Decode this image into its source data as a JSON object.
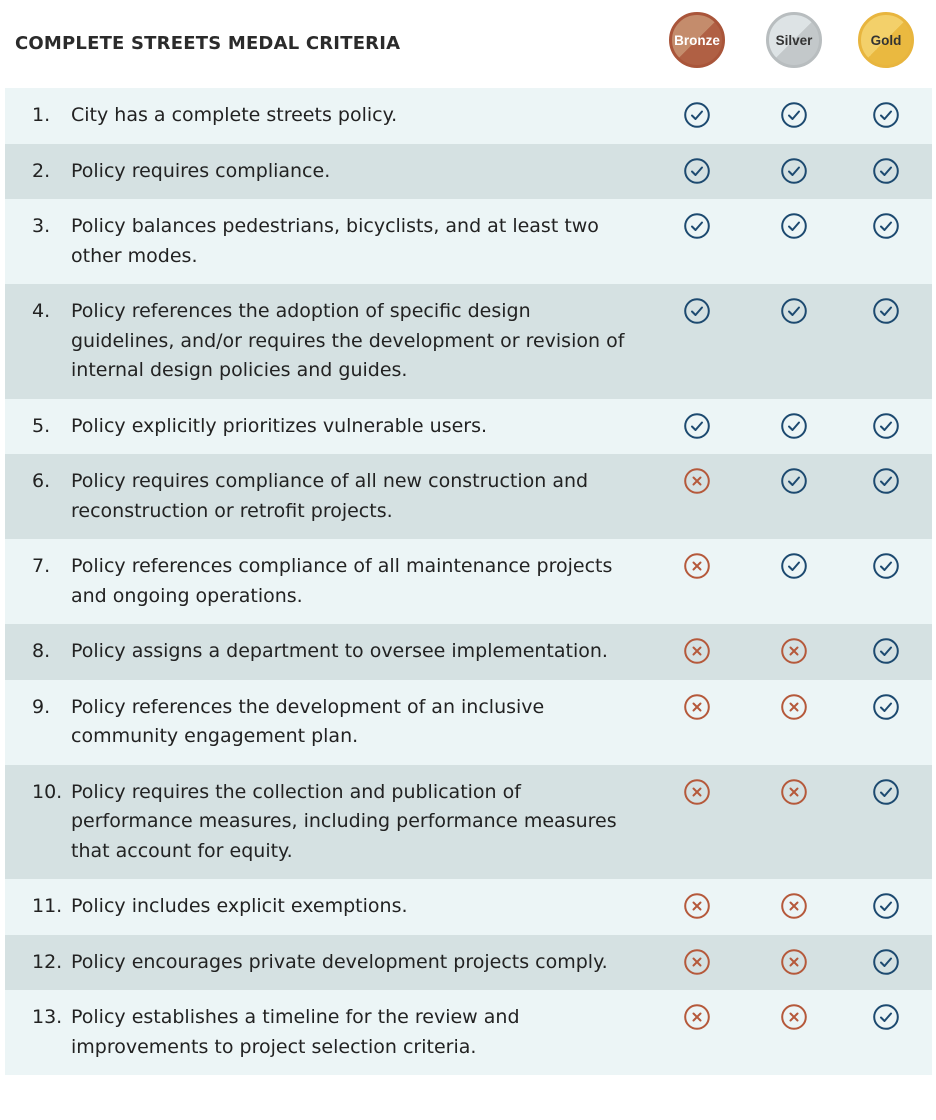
{
  "title": "COMPLETE STREETS MEDAL CRITERIA",
  "medals": [
    "Bronze",
    "Silver",
    "Gold"
  ],
  "colors": {
    "check": "#1d4a70",
    "cross": "#b5593b",
    "row_light": "#ecf5f6",
    "row_dark": "#d5e1e2"
  },
  "rows": [
    {
      "num": "1.",
      "text": "City has a complete streets policy.",
      "marks": [
        "check",
        "check",
        "check"
      ]
    },
    {
      "num": "2.",
      "text": "Policy requires compliance.",
      "marks": [
        "check",
        "check",
        "check"
      ]
    },
    {
      "num": "3.",
      "text": "Policy balances pedestrians, bicyclists, and at least two other modes.",
      "marks": [
        "check",
        "check",
        "check"
      ]
    },
    {
      "num": "4.",
      "text": "Policy references the adoption of specific design guidelines, and/or requires the development or revision of internal design policies and guides.",
      "marks": [
        "check",
        "check",
        "check"
      ]
    },
    {
      "num": "5.",
      "text": "Policy explicitly prioritizes vulnerable users.",
      "marks": [
        "check",
        "check",
        "check"
      ]
    },
    {
      "num": "6.",
      "text": "Policy requires compliance of all new construction and reconstruction or retrofit projects.",
      "marks": [
        "cross",
        "check",
        "check"
      ]
    },
    {
      "num": "7.",
      "text": "Policy references compliance of all maintenance projects and ongoing operations.",
      "marks": [
        "cross",
        "check",
        "check"
      ]
    },
    {
      "num": "8.",
      "text": "Policy assigns a department to oversee implementation.",
      "marks": [
        "cross",
        "cross",
        "check"
      ]
    },
    {
      "num": "9.",
      "text": "Policy references the development of an inclusive community engagement plan.",
      "marks": [
        "cross",
        "cross",
        "check"
      ]
    },
    {
      "num": "10.",
      "text": "Policy requires the collection and publication of performance measures, including performance measures that account for equity.",
      "marks": [
        "cross",
        "cross",
        "check"
      ]
    },
    {
      "num": "11.",
      "text": "Policy includes explicit exemptions.",
      "marks": [
        "cross",
        "cross",
        "check"
      ]
    },
    {
      "num": "12.",
      "text": "Policy encourages private development projects comply.",
      "marks": [
        "cross",
        "cross",
        "check"
      ]
    },
    {
      "num": "13.",
      "text": "Policy establishes a timeline for the review and improvements to project selection criteria.",
      "marks": [
        "cross",
        "cross",
        "check"
      ]
    }
  ]
}
